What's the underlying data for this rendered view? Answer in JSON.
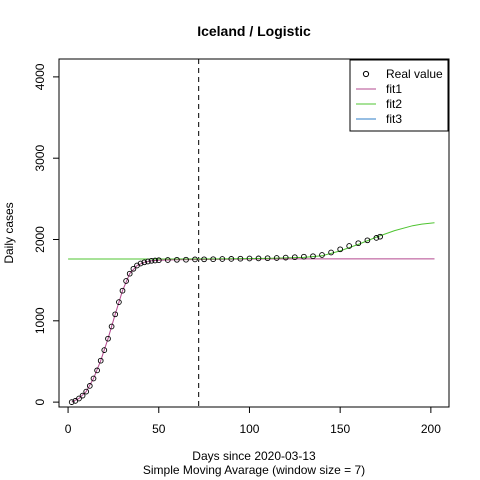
{
  "chart_data": {
    "type": "scatter",
    "title": "Iceland / Logistic",
    "xlabel": "Days since 2020-03-13",
    "subtitle": "Simple Moving Avarage (window size = 7)",
    "ylabel": "Daily cases",
    "xlim": [
      -5,
      210
    ],
    "ylim": [
      -60,
      4220
    ],
    "xticks": [
      0,
      50,
      100,
      150,
      200
    ],
    "yticks": [
      0,
      1000,
      2000,
      3000,
      4000
    ],
    "vline_x": 72,
    "legend_position": "top-right",
    "series": [
      {
        "name": "Real value",
        "kind": "points",
        "color": "#000000",
        "points": [
          [
            2,
            0
          ],
          [
            4,
            15
          ],
          [
            6,
            45
          ],
          [
            8,
            80
          ],
          [
            10,
            130
          ],
          [
            12,
            200
          ],
          [
            14,
            290
          ],
          [
            16,
            390
          ],
          [
            18,
            510
          ],
          [
            20,
            640
          ],
          [
            22,
            780
          ],
          [
            24,
            930
          ],
          [
            26,
            1080
          ],
          [
            28,
            1230
          ],
          [
            30,
            1370
          ],
          [
            32,
            1490
          ],
          [
            34,
            1580
          ],
          [
            36,
            1640
          ],
          [
            38,
            1680
          ],
          [
            40,
            1705
          ],
          [
            42,
            1720
          ],
          [
            44,
            1730
          ],
          [
            46,
            1738
          ],
          [
            48,
            1742
          ],
          [
            50,
            1745
          ],
          [
            55,
            1748
          ],
          [
            60,
            1750
          ],
          [
            65,
            1752
          ],
          [
            70,
            1755
          ],
          [
            75,
            1757
          ],
          [
            80,
            1758
          ],
          [
            85,
            1760
          ],
          [
            90,
            1762
          ],
          [
            95,
            1764
          ],
          [
            100,
            1766
          ],
          [
            105,
            1768
          ],
          [
            110,
            1770
          ],
          [
            115,
            1773
          ],
          [
            120,
            1777
          ],
          [
            125,
            1782
          ],
          [
            130,
            1788
          ],
          [
            135,
            1795
          ],
          [
            140,
            1810
          ],
          [
            145,
            1840
          ],
          [
            150,
            1880
          ],
          [
            155,
            1920
          ],
          [
            160,
            1955
          ],
          [
            165,
            1990
          ],
          [
            170,
            2020
          ],
          [
            172,
            2035
          ]
        ]
      },
      {
        "name": "fit1",
        "kind": "line",
        "color": "#b3488f",
        "points": [
          [
            2,
            0
          ],
          [
            6,
            45
          ],
          [
            10,
            130
          ],
          [
            14,
            290
          ],
          [
            18,
            510
          ],
          [
            22,
            780
          ],
          [
            26,
            1080
          ],
          [
            30,
            1370
          ],
          [
            34,
            1580
          ],
          [
            38,
            1680
          ],
          [
            42,
            1720
          ],
          [
            46,
            1738
          ],
          [
            50,
            1745
          ],
          [
            60,
            1750
          ],
          [
            80,
            1755
          ],
          [
            100,
            1760
          ],
          [
            120,
            1762
          ],
          [
            150,
            1762
          ],
          [
            202,
            1762
          ]
        ]
      },
      {
        "name": "fit2",
        "kind": "line",
        "color": "#4fc431",
        "points": [
          [
            0,
            1760
          ],
          [
            50,
            1760
          ],
          [
            80,
            1762
          ],
          [
            110,
            1768
          ],
          [
            130,
            1780
          ],
          [
            140,
            1800
          ],
          [
            150,
            1860
          ],
          [
            160,
            1940
          ],
          [
            170,
            2030
          ],
          [
            180,
            2110
          ],
          [
            190,
            2170
          ],
          [
            195,
            2190
          ],
          [
            202,
            2205
          ]
        ]
      },
      {
        "name": "fit3",
        "kind": "line",
        "color": "#2e7dc7",
        "points": []
      }
    ]
  }
}
